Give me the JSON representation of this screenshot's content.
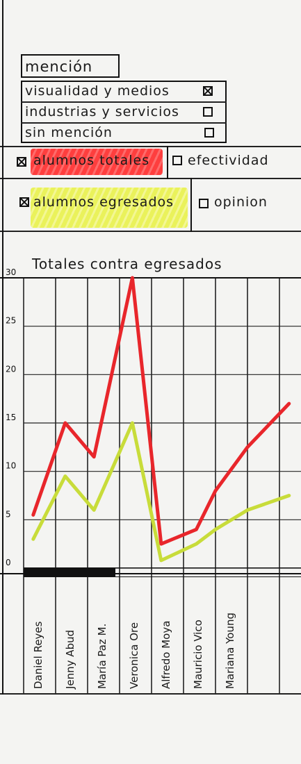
{
  "mencion": {
    "label": "mención",
    "options": [
      {
        "label": "visualidad y medios",
        "checked": true
      },
      {
        "label": "industrias y servicios",
        "checked": false
      },
      {
        "label": "sin mención",
        "checked": false
      }
    ]
  },
  "filters": [
    {
      "label": "alumnos totales",
      "checked": true,
      "highlight": "#ff2a2a"
    },
    {
      "label": "efectividad",
      "checked": false
    },
    {
      "label": "alumnos egresados",
      "checked": true,
      "highlight": "#e9f24a"
    },
    {
      "label": "opinion",
      "checked": false
    }
  ],
  "chart_data": {
    "type": "line",
    "title": "Totales contra egresados",
    "categories": [
      "Daniel Reyes",
      "Jenny Abud",
      "María Paz M.",
      "Veronica Ore",
      "Alfredo Moya",
      "Mauricio Vico",
      "Mariana Young"
    ],
    "y_ticks": [
      "30",
      "25",
      "20",
      "15",
      "10",
      "5",
      "0"
    ],
    "ylim": [
      0,
      30
    ],
    "series": [
      {
        "name": "alumnos totales",
        "color": "#e8262b",
        "x": [
          0.3,
          1.3,
          2.2,
          3.4,
          4.3,
          5.4,
          6.0,
          7.0,
          8.3
        ],
        "values": [
          5.5,
          15,
          11.5,
          30,
          2.5,
          4,
          8,
          12.5,
          17
        ]
      },
      {
        "name": "alumnos egresados",
        "color": "#c8dc3a",
        "x": [
          0.3,
          1.3,
          2.2,
          3.4,
          4.3,
          5.4,
          6.0,
          7.0,
          8.3
        ],
        "values": [
          3,
          9.5,
          6,
          15,
          0.8,
          2.5,
          4,
          6,
          7.5
        ]
      }
    ]
  }
}
